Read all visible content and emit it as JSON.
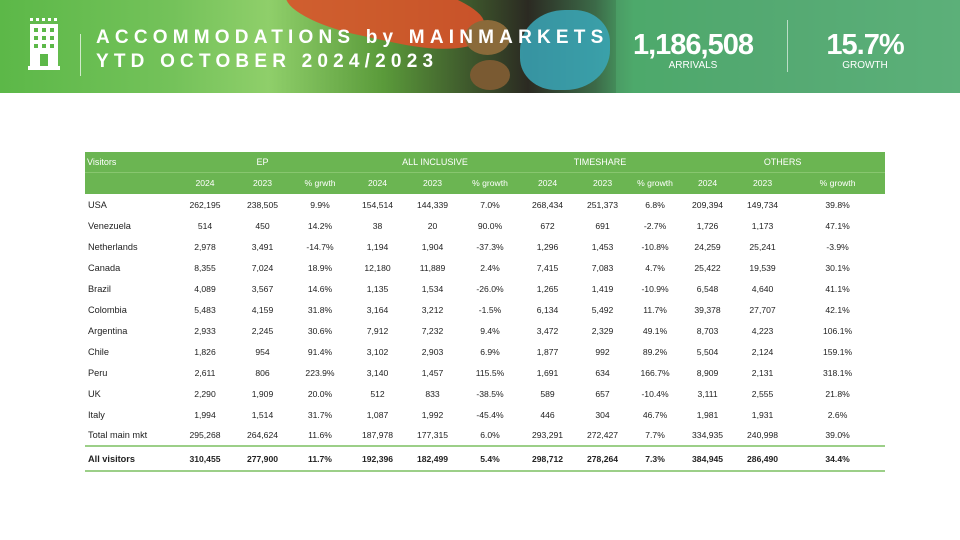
{
  "header": {
    "title_line1": "ACCOMMODATIONS by MAINMARKETS",
    "title_line2": "YTD OCTOBER 2024/2023",
    "arrivals_value": "1,186,508",
    "arrivals_label": "ARRIVALS",
    "growth_value": "15.7%",
    "growth_label": "GROWTH",
    "icon": "hotel-building-icon"
  },
  "table": {
    "visitors_label": "Visitors",
    "groups": [
      "EP",
      "ALL INCLUSIVE",
      "TIMESHARE",
      "OTHERS"
    ],
    "subheaders": [
      "2024",
      "2023",
      "% grwth",
      "2024",
      "2023",
      "% growth",
      "2024",
      "2023",
      "% growth",
      "2024",
      "2023",
      "% growth"
    ],
    "rows": [
      {
        "name": "USA",
        "v": [
          "262,195",
          "238,505",
          "9.9%",
          "154,514",
          "144,339",
          "7.0%",
          "268,434",
          "251,373",
          "6.8%",
          "209,394",
          "149,734",
          "39.8%"
        ]
      },
      {
        "name": "Venezuela",
        "v": [
          "514",
          "450",
          "14.2%",
          "38",
          "20",
          "90.0%",
          "672",
          "691",
          "-2.7%",
          "1,726",
          "1,173",
          "47.1%"
        ]
      },
      {
        "name": "Netherlands",
        "v": [
          "2,978",
          "3,491",
          "-14.7%",
          "1,194",
          "1,904",
          "-37.3%",
          "1,296",
          "1,453",
          "-10.8%",
          "24,259",
          "25,241",
          "-3.9%"
        ]
      },
      {
        "name": "Canada",
        "v": [
          "8,355",
          "7,024",
          "18.9%",
          "12,180",
          "11,889",
          "2.4%",
          "7,415",
          "7,083",
          "4.7%",
          "25,422",
          "19,539",
          "30.1%"
        ]
      },
      {
        "name": "Brazil",
        "v": [
          "4,089",
          "3,567",
          "14.6%",
          "1,135",
          "1,534",
          "-26.0%",
          "1,265",
          "1,419",
          "-10.9%",
          "6,548",
          "4,640",
          "41.1%"
        ]
      },
      {
        "name": "Colombia",
        "v": [
          "5,483",
          "4,159",
          "31.8%",
          "3,164",
          "3,212",
          "-1.5%",
          "6,134",
          "5,492",
          "11.7%",
          "39,378",
          "27,707",
          "42.1%"
        ]
      },
      {
        "name": "Argentina",
        "v": [
          "2,933",
          "2,245",
          "30.6%",
          "7,912",
          "7,232",
          "9.4%",
          "3,472",
          "2,329",
          "49.1%",
          "8,703",
          "4,223",
          "106.1%"
        ]
      },
      {
        "name": "Chile",
        "v": [
          "1,826",
          "954",
          "91.4%",
          "3,102",
          "2,903",
          "6.9%",
          "1,877",
          "992",
          "89.2%",
          "5,504",
          "2,124",
          "159.1%"
        ]
      },
      {
        "name": "Peru",
        "v": [
          "2,611",
          "806",
          "223.9%",
          "3,140",
          "1,457",
          "115.5%",
          "1,691",
          "634",
          "166.7%",
          "8,909",
          "2,131",
          "318.1%"
        ]
      },
      {
        "name": "UK",
        "v": [
          "2,290",
          "1,909",
          "20.0%",
          "512",
          "833",
          "-38.5%",
          "589",
          "657",
          "-10.4%",
          "3,111",
          "2,555",
          "21.8%"
        ]
      },
      {
        "name": "Italy",
        "v": [
          "1,994",
          "1,514",
          "31.7%",
          "1,087",
          "1,992",
          "-45.4%",
          "446",
          "304",
          "46.7%",
          "1,981",
          "1,931",
          "2.6%"
        ]
      },
      {
        "name": "Total main mkt",
        "v": [
          "295,268",
          "264,624",
          "11.6%",
          "187,978",
          "177,315",
          "6.0%",
          "293,291",
          "272,427",
          "7.7%",
          "334,935",
          "240,998",
          "39.0%"
        ]
      }
    ],
    "all_visitors": {
      "name": "All visitors",
      "v": [
        "310,455",
        "277,900",
        "11.7%",
        "192,396",
        "182,499",
        "5.4%",
        "298,712",
        "278,264",
        "7.3%",
        "384,945",
        "286,490",
        "34.4%"
      ]
    }
  }
}
